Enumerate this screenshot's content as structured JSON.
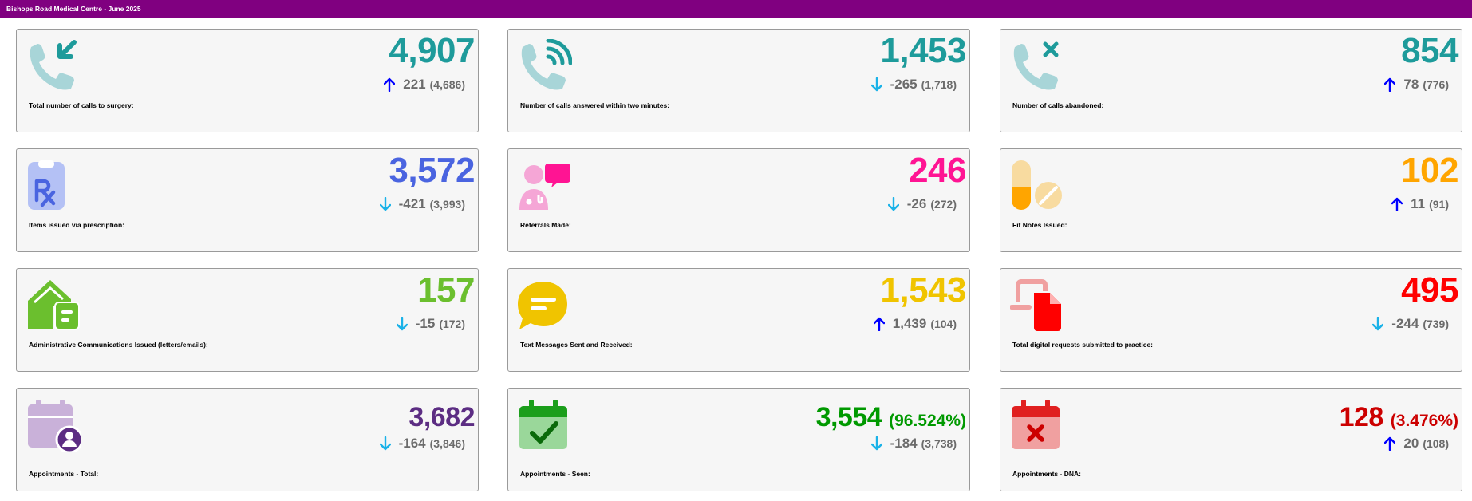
{
  "header": {
    "title": "Bishops Road Medical Centre - June 2025"
  },
  "colors": {
    "header_bg": "#800080",
    "teal": "#1e9b9b",
    "blue": "#4a64e0",
    "pink": "#ff1493",
    "orange": "#ffa500",
    "green": "#6bbf2e",
    "yellow": "#f0c400",
    "red": "#ff0000",
    "purple": "#5c2d83",
    "dark_green": "#009900",
    "dna_red": "#cc0000",
    "arrow_up": "#0000ff",
    "arrow_down": "#1ab2e8",
    "delta_grey": "#6b6b6b"
  },
  "cards": [
    {
      "value": "4,907",
      "change": "221",
      "previous": "(4,686)",
      "direction": "up",
      "label": "Total number of calls to surgery:",
      "icon": "incoming-call-icon",
      "color": "#1e9b9b"
    },
    {
      "value": "1,453",
      "change": "-265",
      "previous": "(1,718)",
      "direction": "down",
      "label": "Number of calls answered within two minutes:",
      "icon": "call-answered-icon",
      "color": "#1e9b9b"
    },
    {
      "value": "854",
      "change": "78",
      "previous": "(776)",
      "direction": "up",
      "label": "Number of calls abandoned:",
      "icon": "call-abandoned-icon",
      "color": "#1e9b9b"
    },
    {
      "value": "3,572",
      "change": "-421",
      "previous": "(3,993)",
      "direction": "down",
      "label": "Items issued via prescription:",
      "icon": "prescription-icon",
      "color": "#4a64e0"
    },
    {
      "value": "246",
      "change": "-26",
      "previous": "(272)",
      "direction": "down",
      "label": "Referrals Made:",
      "icon": "referral-doctor-icon",
      "color": "#ff1493"
    },
    {
      "value": "102",
      "change": "11",
      "previous": "(91)",
      "direction": "up",
      "label": "Fit Notes Issued:",
      "icon": "pills-icon",
      "color": "#ffa500"
    },
    {
      "value": "157",
      "change": "-15",
      "previous": "(172)",
      "direction": "down",
      "label": "Administrative Communications Issued (letters/emails):",
      "icon": "mail-house-icon",
      "color": "#6bbf2e"
    },
    {
      "value": "1,543",
      "change": "1,439",
      "previous": "(104)",
      "direction": "up",
      "label": "Text Messages Sent and Received:",
      "icon": "chat-bubble-icon",
      "color": "#f0c400"
    },
    {
      "value": "495",
      "change": "-244",
      "previous": "(739)",
      "direction": "down",
      "label": "Total digital requests submitted to practice:",
      "icon": "digital-request-icon",
      "color": "#ff0000"
    },
    {
      "value": "3,682",
      "value_pct": "",
      "change": "-164",
      "previous": "(3,846)",
      "direction": "down",
      "label": "Appointments - Total:",
      "icon": "calendar-person-icon",
      "color": "#5c2d83"
    },
    {
      "value": "3,554",
      "value_pct": "(96.524%)",
      "change": "-184",
      "previous": "(3,738)",
      "direction": "down",
      "label": "Appointments - Seen:",
      "icon": "calendar-check-icon",
      "color": "#009900"
    },
    {
      "value": "128",
      "value_pct": "(3.476%)",
      "change": "20",
      "previous": "(108)",
      "direction": "up",
      "label": "Appointments - DNA:",
      "icon": "calendar-cross-icon",
      "color": "#cc0000"
    }
  ]
}
